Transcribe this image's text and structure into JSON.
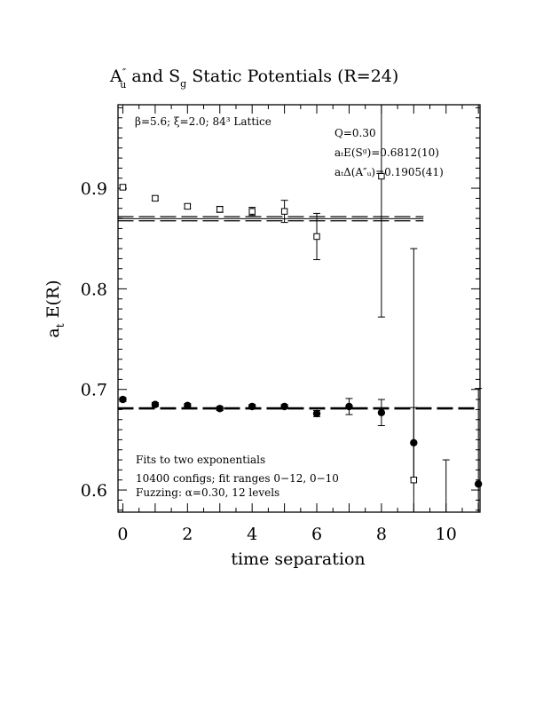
{
  "chart_data": {
    "type": "scatter",
    "title_main": "A",
    "title_sub_u": "u",
    "title_prime": "″",
    "title_mid": " and S",
    "title_sub_g": "g",
    "title_end": " Static Potentials (R=24)",
    "xlabel": "time separation",
    "ylabel_main": "a",
    "ylabel_sub": "t",
    "ylabel_end": " E(R)",
    "xlim": [
      -0.15,
      11.05
    ],
    "ylim": [
      0.578,
      0.983
    ],
    "x_ticks": [
      0,
      2,
      4,
      6,
      8,
      10
    ],
    "x_tick_labels": [
      "0",
      "2",
      "4",
      "6",
      "8",
      "10"
    ],
    "y_ticks": [
      0.6,
      0.7,
      0.8,
      0.9
    ],
    "y_tick_labels": [
      "0.6",
      "0.7",
      "0.8",
      "0.9"
    ],
    "annotations": {
      "lattice": "β=5.6; ξ=2.0; 84³ Lattice",
      "q": "Q=0.30",
      "e_sg": "aₜE(Sᵍ)=0.6812(10)",
      "delta_au": "aₜΔ(A″ᵤ)=0.1905(41)",
      "fits": "Fits to two exponentials",
      "configs": "10400 configs; fit ranges 0−12, 0−10",
      "fuzzing": "Fuzzing: α=0.30, 12 levels"
    },
    "series": [
      {
        "marker": "filled-circle",
        "x": [
          0,
          1,
          2,
          3,
          4,
          5,
          6,
          7,
          8,
          9,
          11
        ],
        "y": [
          0.69,
          0.685,
          0.684,
          0.681,
          0.683,
          0.683,
          0.676,
          0.683,
          0.677,
          0.647,
          0.606
        ],
        "err": [
          0.002,
          0.002,
          0.002,
          0.002,
          0.002,
          0.002,
          0.003,
          0.008,
          0.013,
          0.035,
          0.095
        ]
      },
      {
        "marker": "open-square",
        "x": [
          0,
          1,
          2,
          3,
          4,
          5,
          6,
          8,
          9,
          10
        ],
        "y": [
          0.901,
          0.89,
          0.882,
          0.879,
          0.877,
          0.877,
          0.852,
          0.912,
          0.61,
          0.572
        ],
        "err": [
          0.002,
          0.002,
          0.002,
          0.003,
          0.004,
          0.011,
          0.023,
          0.14,
          0.23,
          0.058
        ]
      }
    ],
    "fit_lines": [
      {
        "style": "long-dash",
        "y": 0.6812,
        "x_range": [
          0,
          11
        ]
      },
      {
        "style": "long-dash",
        "y": 0.8717,
        "x_range": [
          0,
          9.3
        ]
      },
      {
        "style": "long-dash",
        "y": 0.8676,
        "x_range": [
          0,
          9.3
        ]
      },
      {
        "style": "solid",
        "y": 0.8697,
        "x_range": [
          0,
          9.3
        ]
      }
    ]
  }
}
